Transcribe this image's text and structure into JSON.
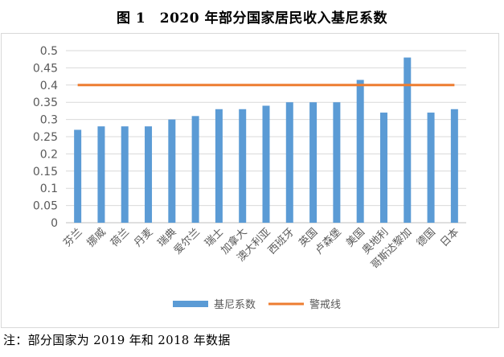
{
  "title": "图 1　2020 年部分国家居民收入基尼系数",
  "note": "注：部分国家为 2019 年和 2018 年数据",
  "colors": {
    "bar": "#5b9bd5",
    "line": "#ed7d31",
    "grid": "#d9d9d9",
    "text": "#595959"
  },
  "chart_data": {
    "type": "bar",
    "categories": [
      "芬兰",
      "挪威",
      "荷兰",
      "丹麦",
      "瑞典",
      "爱尔兰",
      "瑞士",
      "加拿大",
      "澳大利亚",
      "西班牙",
      "英国",
      "卢森堡",
      "美国",
      "奥地利",
      "哥斯达黎加",
      "德国",
      "日本"
    ],
    "series": [
      {
        "name": "基尼系数",
        "values": [
          0.27,
          0.28,
          0.28,
          0.28,
          0.3,
          0.31,
          0.33,
          0.33,
          0.34,
          0.35,
          0.35,
          0.35,
          0.415,
          0.32,
          0.48,
          0.32,
          0.33
        ]
      },
      {
        "name": "警戒线",
        "type": "line",
        "values": [
          0.4,
          0.4,
          0.4,
          0.4,
          0.4,
          0.4,
          0.4,
          0.4,
          0.4,
          0.4,
          0.4,
          0.4,
          0.4,
          0.4,
          0.4,
          0.4,
          0.4
        ]
      }
    ],
    "yticks": [
      "0",
      "0.05",
      "0.1",
      "0.15",
      "0.2",
      "0.25",
      "0.3",
      "0.35",
      "0.4",
      "0.45",
      "0.5"
    ],
    "ylim": [
      0,
      0.5
    ],
    "grid": true,
    "legend": "bottom"
  }
}
